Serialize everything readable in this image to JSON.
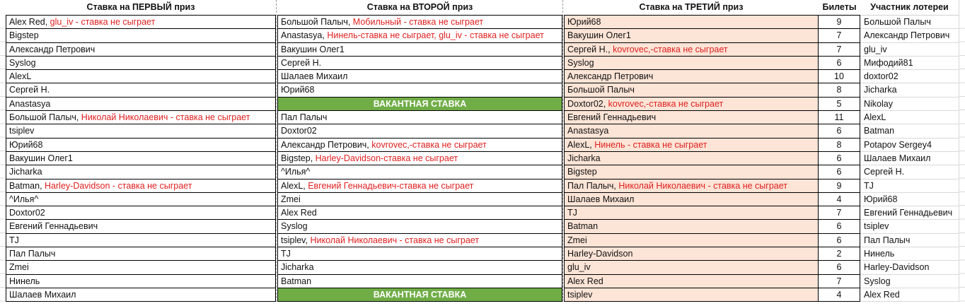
{
  "columns": [
    {
      "key": "bet1",
      "label": "Ставка на ПЕРВЫЙ приз"
    },
    {
      "key": "bet2",
      "label": "Ставка на ВТОРОЙ приз"
    },
    {
      "key": "bet3",
      "label": "Ставка на ТРЕТИЙ приз"
    },
    {
      "key": "tickets",
      "label": "Билеты"
    },
    {
      "key": "participant",
      "label": "Участник лотереи"
    }
  ],
  "vacant_label": "ВАКАНТНАЯ СТАВКА",
  "colors": {
    "red_text": "#e02020",
    "green_bg": "#70ad47",
    "peach_bg": "#fce4d6"
  },
  "rows": [
    {
      "bet1": {
        "text": "Alex Red, ",
        "red": "glu_iv - ставка не сыграет"
      },
      "bet2": {
        "text": "Большой Палыч, ",
        "red": "Мобильный - ставка не сыграет"
      },
      "bet3": {
        "text": "Юрий68"
      },
      "tickets": "9",
      "participant": "Большой Палыч"
    },
    {
      "bet1": {
        "text": "Bigstep"
      },
      "bet2": {
        "text": "Anastasya, ",
        "red": "Нинель-ставка не сыграет, glu_iv - ставка не сыграет"
      },
      "bet3": {
        "text": "Вакушин Олег1"
      },
      "tickets": "7",
      "participant": "Александр Петрович"
    },
    {
      "bet1": {
        "text": "Александр Петрович"
      },
      "bet2": {
        "text": "Вакушин Олег1"
      },
      "bet3": {
        "text": "Сергей Н., ",
        "red": "kovrovec,-ставка не сыграет"
      },
      "tickets": "7",
      "participant": "glu_iv"
    },
    {
      "bet1": {
        "text": "Syslog"
      },
      "bet2": {
        "text": "Сергей Н."
      },
      "bet3": {
        "text": "Syslog"
      },
      "tickets": "6",
      "participant": "Мифодий81"
    },
    {
      "bet1": {
        "text": "AlexL"
      },
      "bet2": {
        "text": "Шалаев Михаил"
      },
      "bet3": {
        "text": "Александр Петрович"
      },
      "tickets": "10",
      "participant": "doxtor02"
    },
    {
      "bet1": {
        "text": "Сергей Н."
      },
      "bet2": {
        "text": "Юрий68"
      },
      "bet3": {
        "text": "Большой Палыч"
      },
      "tickets": "8",
      "participant": "Jicharka"
    },
    {
      "bet1": {
        "text": "Anastasya"
      },
      "bet2": {
        "vacant": true
      },
      "bet3": {
        "text": "Doxtor02, ",
        "red": "kovrovec,-ставка не сыграет"
      },
      "tickets": "5",
      "participant": "Nikolay"
    },
    {
      "bet1": {
        "text": "Большой Палыч, ",
        "red": "Николай Николаевич - ставка не сыграет"
      },
      "bet2": {
        "text": "Пал Палыч"
      },
      "bet3": {
        "text": "Евгений Геннадьевич"
      },
      "tickets": "11",
      "participant": "AlexL"
    },
    {
      "bet1": {
        "text": "tsiplev"
      },
      "bet2": {
        "text": "Doxtor02"
      },
      "bet3": {
        "text": "Anastasya"
      },
      "tickets": "6",
      "participant": "Batman"
    },
    {
      "bet1": {
        "text": "Юрий68"
      },
      "bet2": {
        "text": "Александр Петрович, ",
        "red": "kovrovec,-ставка не сыграет"
      },
      "bet3": {
        "text": "AlexL, ",
        "red": "Нинель - ставка не сыграет"
      },
      "tickets": "8",
      "participant": "Potapov Sergey4"
    },
    {
      "bet1": {
        "text": "Вакушин Олег1"
      },
      "bet2": {
        "text": "Bigstep, ",
        "red": "Harley-Davidson-ставка не сыграет"
      },
      "bet3": {
        "text": "Jicharka"
      },
      "tickets": "6",
      "participant": "Шалаев Михаил"
    },
    {
      "bet1": {
        "text": "Jicharka"
      },
      "bet2": {
        "text": "^Илья^"
      },
      "bet3": {
        "text": "Bigstep"
      },
      "tickets": "6",
      "participant": "Сергей Н."
    },
    {
      "bet1": {
        "text": "Batman, ",
        "red": "Harley-Davidson - ставка не сыграет"
      },
      "bet2": {
        "text": "AlexL, ",
        "red": "Евгений Геннадьевич-ставка не сыграет"
      },
      "bet3": {
        "text": "Пал Палыч, ",
        "red": "Николай Николаевич - ставка не сыграет"
      },
      "tickets": "9",
      "participant": "TJ"
    },
    {
      "bet1": {
        "text": "^Илья^"
      },
      "bet2": {
        "text": "Zmei"
      },
      "bet3": {
        "text": "Шалаев Михаил"
      },
      "tickets": "4",
      "participant": "Юрий68"
    },
    {
      "bet1": {
        "text": "Doxtor02"
      },
      "bet2": {
        "text": "Alex Red"
      },
      "bet3": {
        "text": "TJ"
      },
      "tickets": "7",
      "participant": "Евгений Геннадьевич"
    },
    {
      "bet1": {
        "text": "Евгений Геннадьевич"
      },
      "bet2": {
        "text": "Syslog"
      },
      "bet3": {
        "text": "Batman"
      },
      "tickets": "6",
      "participant": "tsiplev"
    },
    {
      "bet1": {
        "text": "TJ"
      },
      "bet2": {
        "text": "tsiplev, ",
        "red": "Николай Николаевич - ставка не сыграет"
      },
      "bet3": {
        "text": "Zmei"
      },
      "tickets": "6",
      "participant": "Пал Палыч"
    },
    {
      "bet1": {
        "text": "Пал Палыч"
      },
      "bet2": {
        "text": "TJ"
      },
      "bet3": {
        "text": "Harley-Davidson"
      },
      "tickets": "2",
      "participant": "Нинель"
    },
    {
      "bet1": {
        "text": "Zmei"
      },
      "bet2": {
        "text": "Jicharka"
      },
      "bet3": {
        "text": "glu_iv"
      },
      "tickets": "6",
      "participant": "Harley-Davidson"
    },
    {
      "bet1": {
        "text": "Нинель"
      },
      "bet2": {
        "text": "Batman"
      },
      "bet3": {
        "text": "Alex Red"
      },
      "tickets": "7",
      "participant": "Syslog"
    },
    {
      "bet1": {
        "text": "Шалаев Михаил"
      },
      "bet2": {
        "vacant": true
      },
      "bet3": {
        "text": "tsiplev"
      },
      "tickets": "4",
      "participant": "Alex Red"
    }
  ]
}
